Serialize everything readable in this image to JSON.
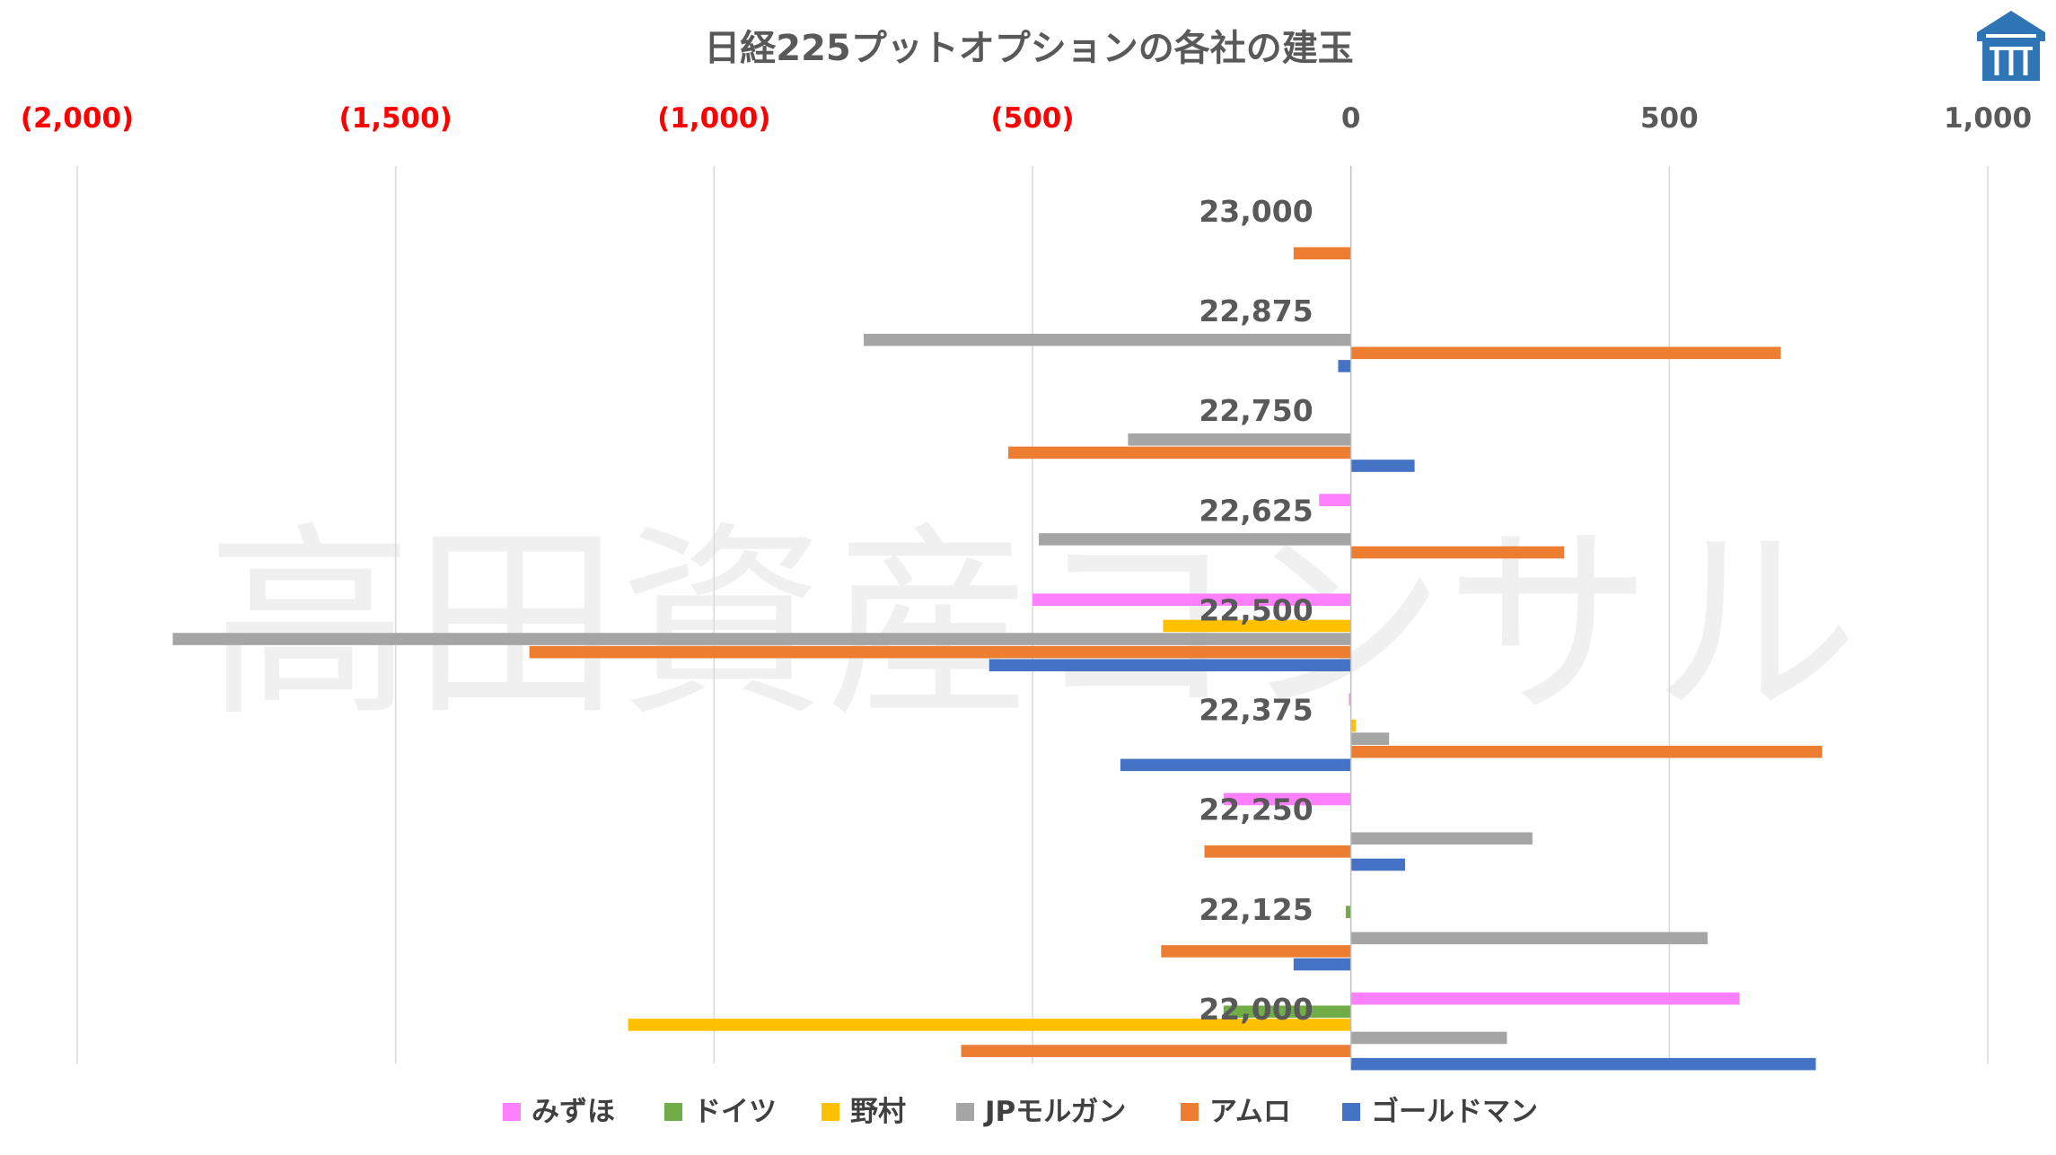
{
  "watermark": "高田資産コンサル",
  "logo": {
    "icon": "shrine-roof-logo-icon",
    "color": "#2e75b6"
  },
  "chart_data": {
    "type": "bar",
    "orientation": "horizontal",
    "title": "日経225プットオプションの各社の建玉",
    "xlim": [
      -2000,
      1000
    ],
    "xticks": [
      -2000,
      -1500,
      -1000,
      -500,
      0,
      500,
      1000
    ],
    "xtick_labels": [
      "(2,000)",
      "(1,500)",
      "(1,000)",
      "(500)",
      "0",
      "500",
      "1,000"
    ],
    "negative_tick_color": "#ff0000",
    "grid": true,
    "legend_position": "bottom",
    "categories": [
      "23,000",
      "22,875",
      "22,750",
      "22,625",
      "22,500",
      "22,375",
      "22,250",
      "22,125",
      "22,000"
    ],
    "series": [
      {
        "name": "みずほ",
        "color": "#ff80ff",
        "values": [
          0,
          0,
          0,
          -50,
          -500,
          -3,
          -200,
          0,
          610
        ]
      },
      {
        "name": "ドイツ",
        "color": "#70ad47",
        "values": [
          0,
          0,
          0,
          0,
          0,
          0,
          0,
          -8,
          -200
        ]
      },
      {
        "name": "野村",
        "color": "#ffc000",
        "values": [
          0,
          0,
          0,
          0,
          -295,
          8,
          0,
          0,
          -1135
        ]
      },
      {
        "name": "JPモルガン",
        "color": "#a5a5a5",
        "values": [
          0,
          -765,
          -350,
          -490,
          -1850,
          60,
          285,
          560,
          245
        ]
      },
      {
        "name": "アムロ",
        "color": "#ed7d31",
        "values": [
          -90,
          675,
          -538,
          335,
          -1290,
          740,
          -230,
          -298,
          -612
        ]
      },
      {
        "name": "ゴールドマン",
        "color": "#4472c4",
        "values": [
          0,
          -20,
          100,
          0,
          -568,
          -362,
          85,
          -90,
          730
        ]
      }
    ]
  }
}
